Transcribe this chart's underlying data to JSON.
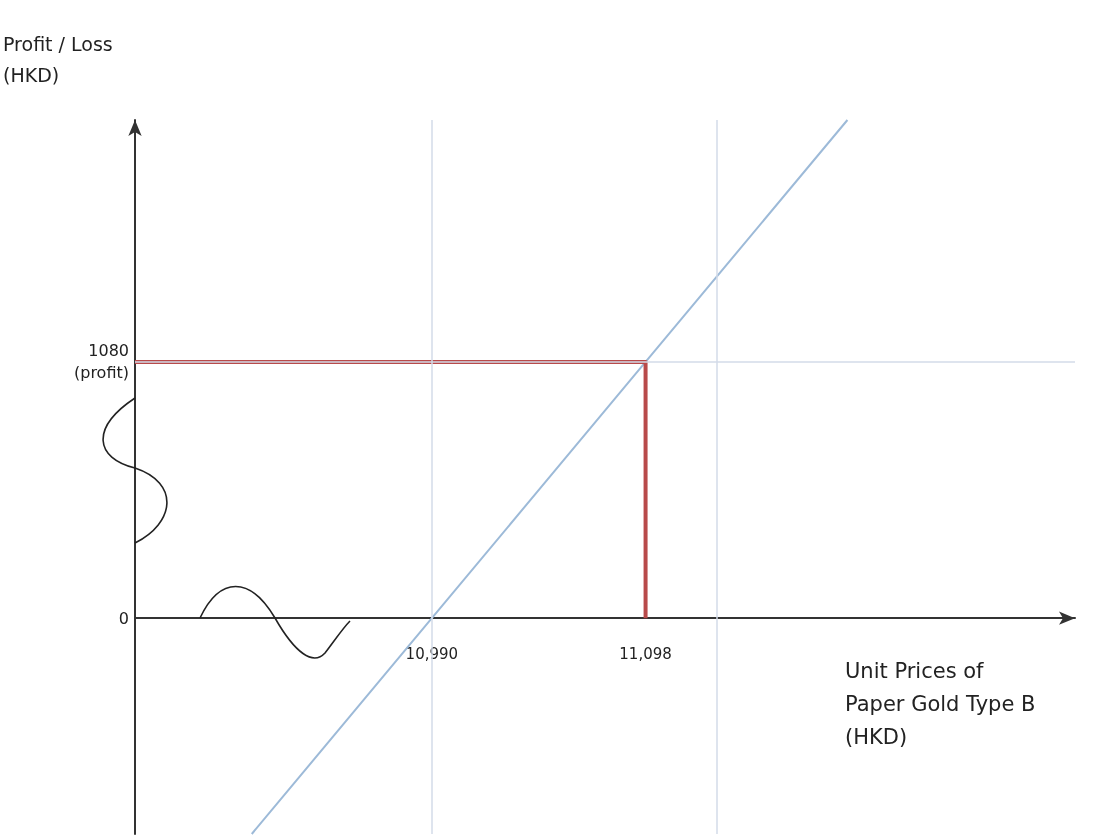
{
  "chart_data": {
    "type": "line",
    "xlabel": "Unit Prices of\nPaper Gold Type B\n(HKD)",
    "ylabel": "Profit / Loss\n(HKD)",
    "xlim": [
      10840,
      11315
    ],
    "xticks": [
      {
        "value": 10990,
        "label": "10,990"
      },
      {
        "value": 11098,
        "label": "11,098"
      }
    ],
    "ylim": [
      -910,
      2100
    ],
    "yticks": [
      {
        "value": 0,
        "label": "0"
      },
      {
        "value": 1080,
        "label": "1080\n(profit)"
      }
    ],
    "series": [
      {
        "x": [
          10899,
          10990,
          11098,
          11200
        ],
        "values": [
          -910,
          0,
          1080,
          2100
        ],
        "color": "#9dbad8"
      },
      {
        "x": [
          10840,
          11098,
          11098
        ],
        "values": [
          1080,
          1080,
          0
        ],
        "color": "#b84a4a"
      }
    ],
    "ref_lines": [
      {
        "axis": "x",
        "value": 10990,
        "color": "#d3dbe8"
      },
      {
        "axis": "x",
        "value": 11134,
        "color": "#d3dbe8"
      },
      {
        "axis": "y",
        "value": 1080,
        "color": "#d3dbe8"
      }
    ],
    "marker": "none",
    "line_style": "solid"
  }
}
